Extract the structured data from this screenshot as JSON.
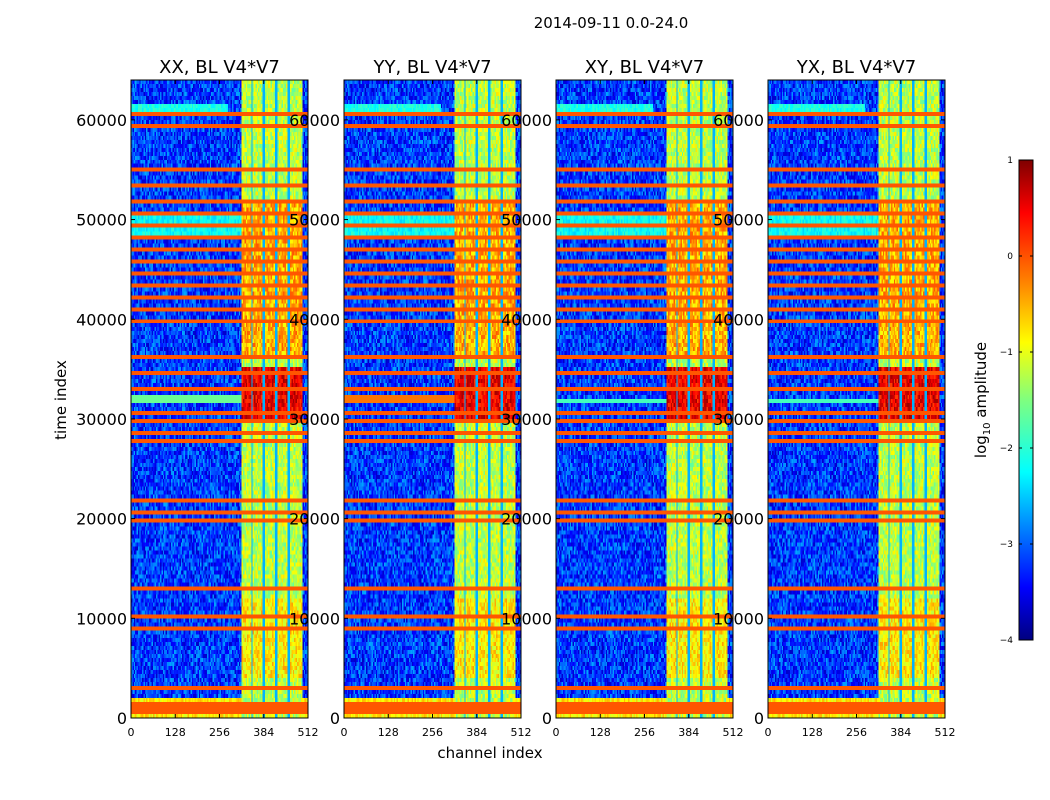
{
  "suptitle": "2014-09-11 0.0-24.0",
  "chart_data": {
    "type": "heatmap",
    "xlabel": "channel index",
    "ylabel": "time index",
    "xlim": [
      0,
      512
    ],
    "ylim": [
      0,
      64000
    ],
    "xticks": [
      0,
      128,
      256,
      384,
      512
    ],
    "yticks": [
      0,
      10000,
      20000,
      30000,
      40000,
      50000,
      60000
    ],
    "panels": [
      {
        "title": "XX, BL V4*V7",
        "pol": "XX"
      },
      {
        "title": "YY, BL V4*V7",
        "pol": "YY"
      },
      {
        "title": "XY, BL V4*V7",
        "pol": "XY"
      },
      {
        "title": "YX, BL V4*V7",
        "pol": "YX"
      }
    ],
    "colorbar": {
      "label": "log10 amplitude",
      "label_base": "log",
      "label_sub": "10",
      "label_rest": " amplitude",
      "range": [
        -4,
        1
      ],
      "ticks": [
        1,
        0,
        -1,
        -2,
        -3,
        -4
      ],
      "tick_labels": [
        "1",
        "0",
        "−1",
        "−2",
        "−3",
        "−4"
      ],
      "colormap": "jet"
    },
    "rfi_band_channels": [
      322,
      512
    ],
    "strong_interference_time": [
      29500,
      35000
    ],
    "noise_floor_log10": -3
  },
  "colors": {
    "jet": [
      "#00007f",
      "#0000ff",
      "#007fff",
      "#00ffff",
      "#7fff7f",
      "#ffff00",
      "#ff7f00",
      "#ff0000",
      "#7f0000"
    ],
    "axis": "#000000",
    "background": "#ffffff"
  }
}
